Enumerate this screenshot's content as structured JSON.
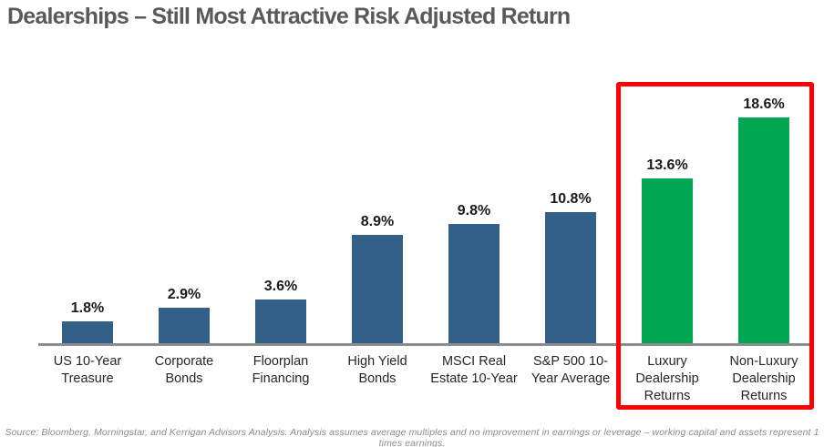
{
  "title": "Dealerships – Still Most Attractive Risk Adjusted Return",
  "source": "Source:  Bloomberg,  Morningstar, and Kerrigan Advisors Analysis.  Analysis assumes average multiples and no improvement in  earnings or leverage – working capital and assets represent  1 times earnings.",
  "colors": {
    "bar_blue": "#336089",
    "bar_green": "#00A651",
    "highlight_red": "#FE0000",
    "axis_gray": "#8C8C8C",
    "title_gray": "#595959"
  },
  "chart_data": {
    "type": "bar",
    "title": "Dealerships – Still Most Attractive Risk Adjusted Return",
    "categories": [
      "US 10-Year\nTreasure",
      "Corporate\nBonds",
      "Floorplan\nFinancing",
      "High Yield\nBonds",
      "MSCI Real\nEstate 10-Year",
      "S&P 500 10-\nYear Average",
      "Luxury\nDealership\nReturns",
      "Non-Luxury\nDealership\nReturns"
    ],
    "values": [
      1.8,
      2.9,
      3.6,
      8.9,
      9.8,
      10.8,
      13.6,
      18.6
    ],
    "value_labels": [
      "1.8%",
      "2.9%",
      "3.6%",
      "8.9%",
      "9.8%",
      "10.8%",
      "13.6%",
      "18.6%"
    ],
    "bar_colors": [
      "#336089",
      "#336089",
      "#336089",
      "#336089",
      "#336089",
      "#336089",
      "#00A651",
      "#00A651"
    ],
    "highlight": {
      "indices": [
        6,
        7
      ],
      "box_color": "#FE0000",
      "description": "red box around dealership return bars"
    },
    "xlabel": "",
    "ylabel": "",
    "ylim": [
      0,
      20
    ],
    "grid": false,
    "legend": false,
    "data_labels": "above bars"
  }
}
